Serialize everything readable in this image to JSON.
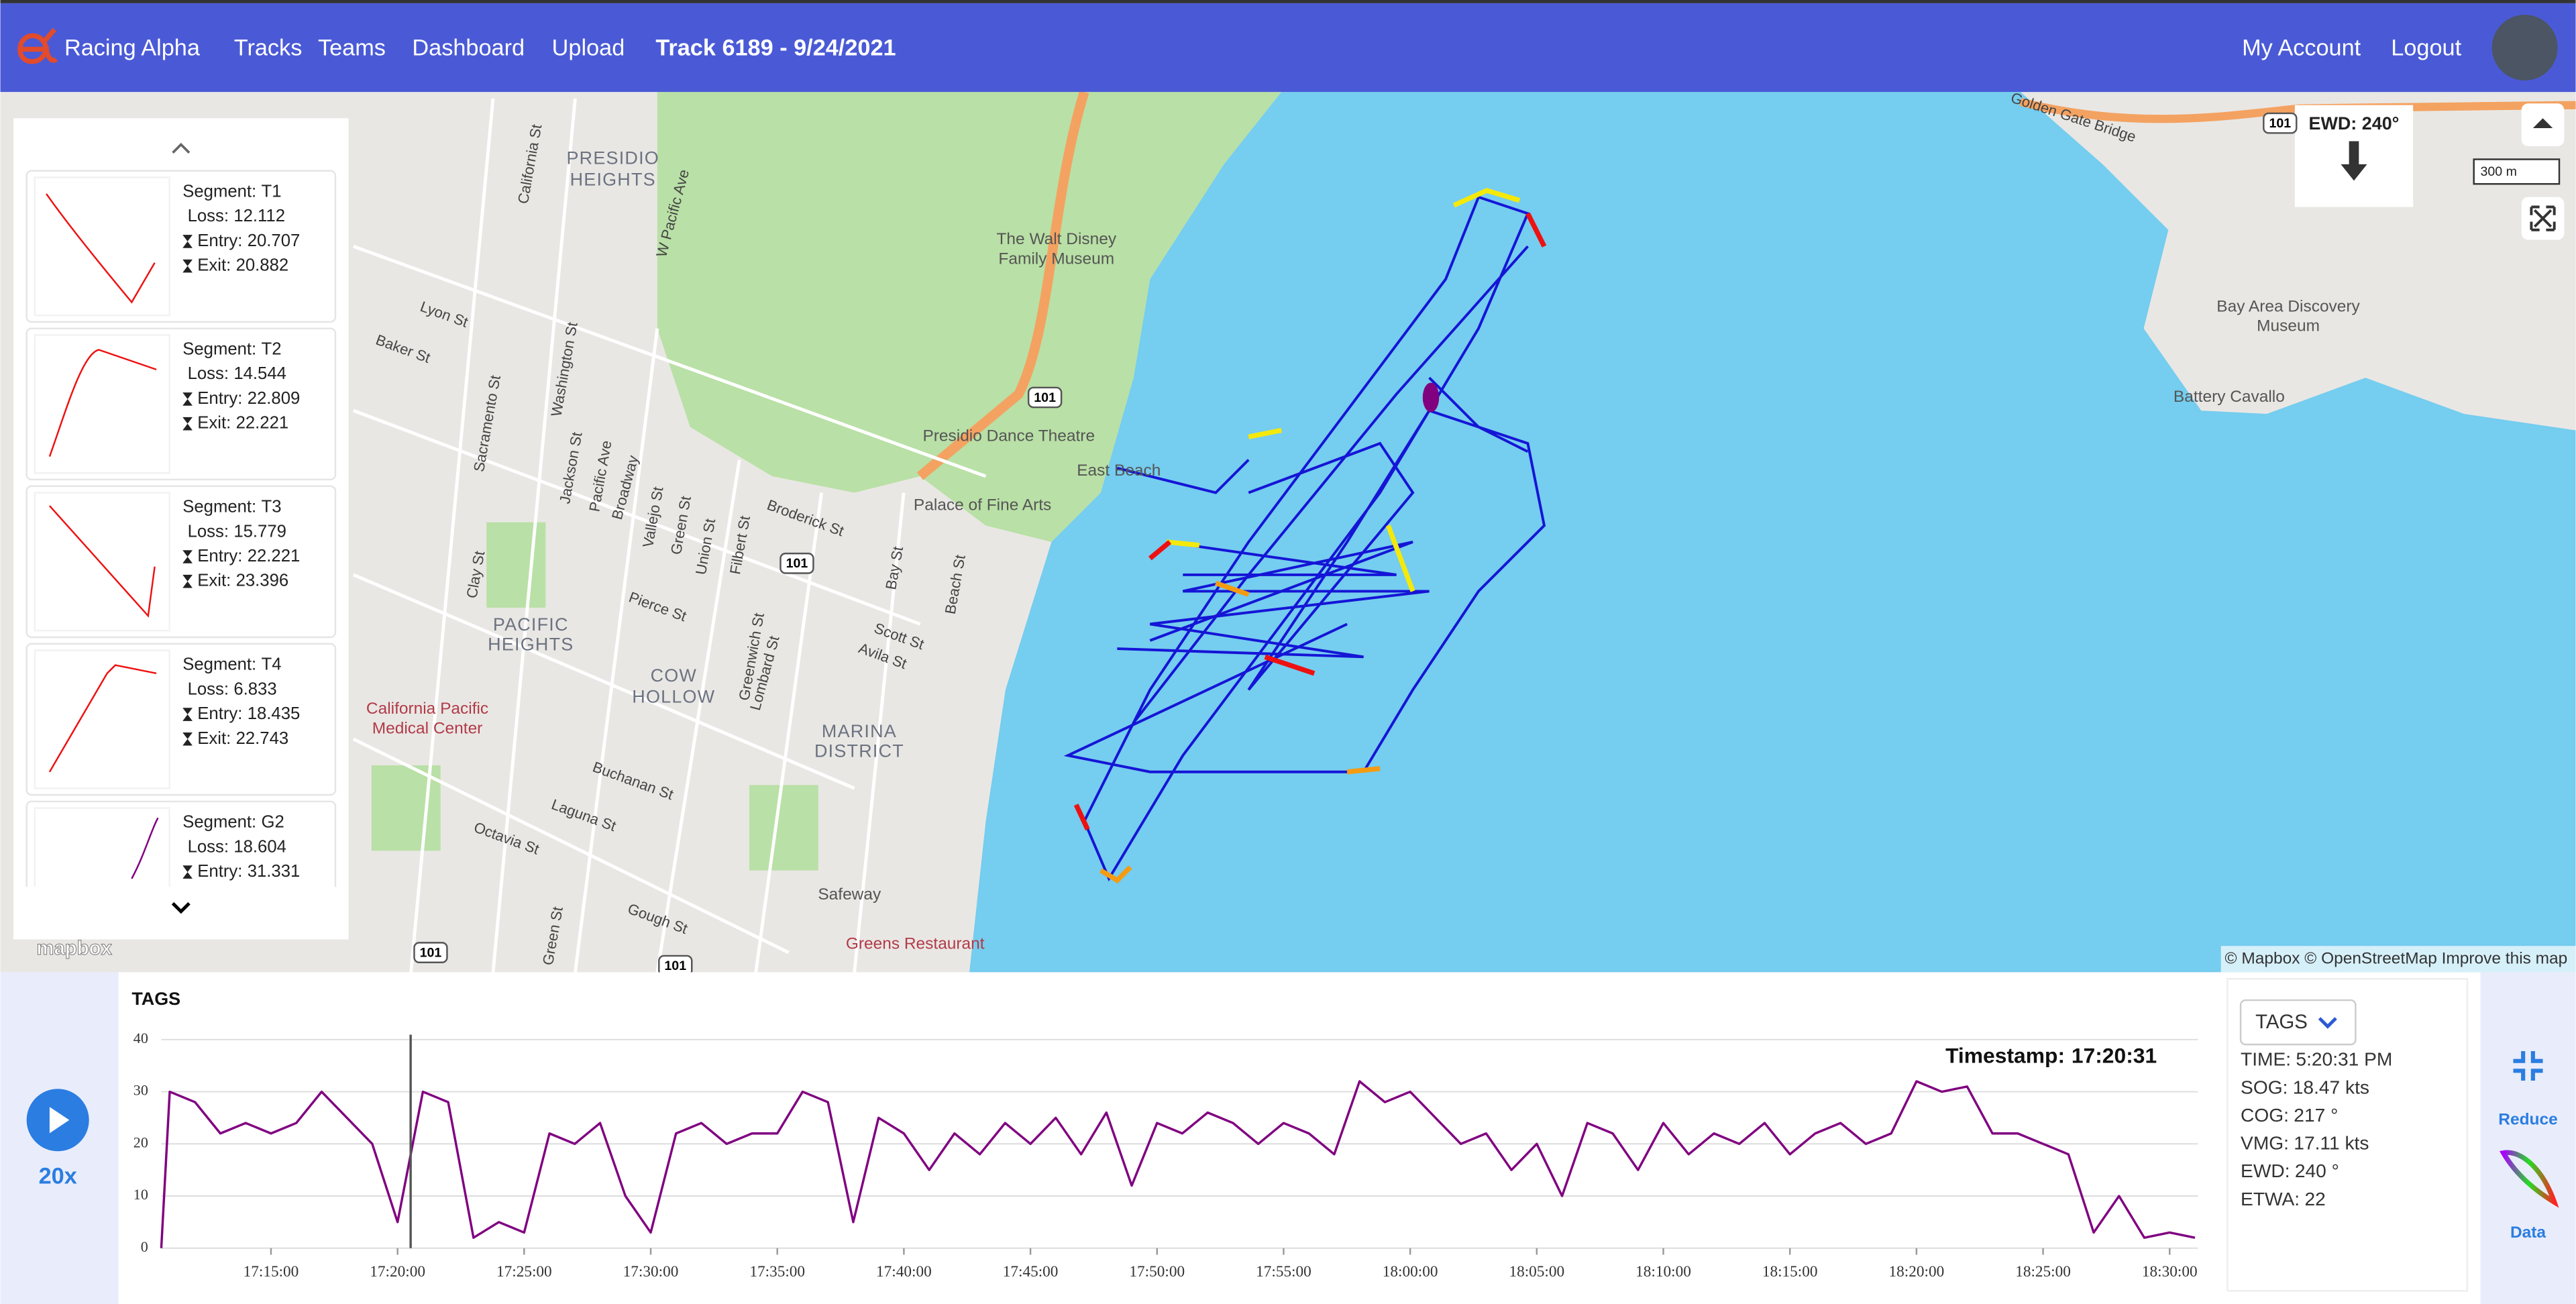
{
  "nav": {
    "brand": "Racing Alpha",
    "links": [
      "Tracks",
      "Teams",
      "Dashboard",
      "Upload"
    ],
    "track": "Track 6189 - 9/24/2021",
    "account": "My Account",
    "logout": "Logout"
  },
  "map": {
    "labels": [
      "PRESIDIO",
      "HEIGHTS",
      "California St",
      "W Pacific Ave",
      "Lyon St",
      "Baker St",
      "Sacramento St",
      "Washington St",
      "Jackson St",
      "Pacific Ave",
      "Broadway",
      "Vallejo St",
      "Green St",
      "Union St",
      "Filbert St",
      "Broderick St",
      "The Walt Disney",
      "Family Museum",
      "Presidio Dance Theatre",
      "Palace of Fine Arts",
      "East Beach",
      "PACIFIC",
      "HEIGHTS",
      "Pierce St",
      "COW",
      "HOLLOW",
      "Greenwich St",
      "Lombard St",
      "Scott St",
      "Avila St",
      "Bay St",
      "Beach St",
      "MARINA",
      "DISTRICT",
      "California Pacific",
      "Medical Center",
      "Clay St",
      "Buchanan St",
      "Laguna St",
      "Octavia St",
      "Gough St",
      "Green St",
      "Safeway",
      "Greens Restaurant",
      "Golden Gate Bridge",
      "Bay Area Discovery",
      "Museum",
      "Battery Cavallo"
    ],
    "shields": [
      "101",
      "101",
      "101",
      "101",
      "101"
    ],
    "wind": "EWD: 240°",
    "scale": "300 m",
    "attribution": "© Mapbox © OpenStreetMap Improve this map",
    "logo": "mapbox"
  },
  "segments": {
    "labels": {
      "segment": "Segment:",
      "loss": "Loss:",
      "entry": "Entry:",
      "exit": "Exit:"
    },
    "items": [
      {
        "name": "T1",
        "loss": 12.112,
        "entry": 20.707,
        "exit": 20.882
      },
      {
        "name": "T2",
        "loss": 14.544,
        "entry": 22.809,
        "exit": 22.221
      },
      {
        "name": "T3",
        "loss": 15.779,
        "entry": 22.221,
        "exit": 23.396
      },
      {
        "name": "T4",
        "loss": 6.833,
        "entry": 18.435,
        "exit": 22.743
      },
      {
        "name": "G2",
        "loss": 18.604,
        "entry": 31.331
      }
    ]
  },
  "player": {
    "speed": "20x"
  },
  "chart_data": {
    "type": "line",
    "title": "TAGS",
    "color": "#800080",
    "grid": true,
    "timestamp_label": "Timestamp:",
    "cursor": "17:20:31",
    "x": [
      "17:10:40",
      "17:11:00",
      "17:12:00",
      "17:13:00",
      "17:14:00",
      "17:15:00",
      "17:16:00",
      "17:17:00",
      "17:18:00",
      "17:19:00",
      "17:20:00",
      "17:21:00",
      "17:22:00",
      "17:23:00",
      "17:24:00",
      "17:25:00",
      "17:26:00",
      "17:27:00",
      "17:28:00",
      "17:29:00",
      "17:30:00",
      "17:31:00",
      "17:32:00",
      "17:33:00",
      "17:34:00",
      "17:35:00",
      "17:36:00",
      "17:37:00",
      "17:38:00",
      "17:39:00",
      "17:40:00",
      "17:41:00",
      "17:42:00",
      "17:43:00",
      "17:44:00",
      "17:45:00",
      "17:46:00",
      "17:47:00",
      "17:48:00",
      "17:49:00",
      "17:50:00",
      "17:51:00",
      "17:52:00",
      "17:53:00",
      "17:54:00",
      "17:55:00",
      "17:56:00",
      "17:57:00",
      "17:58:00",
      "17:59:00",
      "18:00:00",
      "18:01:00",
      "18:02:00",
      "18:03:00",
      "18:04:00",
      "18:05:00",
      "18:06:00",
      "18:07:00",
      "18:08:00",
      "18:09:00",
      "18:10:00",
      "18:11:00",
      "18:12:00",
      "18:13:00",
      "18:14:00",
      "18:15:00",
      "18:16:00",
      "18:17:00",
      "18:18:00",
      "18:19:00",
      "18:20:00",
      "18:21:00",
      "18:22:00",
      "18:23:00",
      "18:24:00",
      "18:25:00",
      "18:26:00",
      "18:27:00",
      "18:28:00",
      "18:29:00",
      "18:30:00",
      "18:31:00"
    ],
    "values": [
      0,
      30,
      28,
      22,
      24,
      22,
      24,
      30,
      25,
      20,
      5,
      30,
      28,
      2,
      5,
      3,
      22,
      20,
      24,
      10,
      3,
      22,
      24,
      20,
      22,
      22,
      30,
      28,
      5,
      25,
      22,
      15,
      22,
      18,
      24,
      20,
      25,
      18,
      26,
      12,
      24,
      22,
      26,
      24,
      20,
      24,
      22,
      18,
      32,
      28,
      30,
      25,
      20,
      22,
      15,
      20,
      10,
      24,
      22,
      15,
      24,
      18,
      22,
      20,
      24,
      18,
      22,
      24,
      20,
      22,
      32,
      30,
      31,
      22,
      22,
      20,
      18,
      3,
      10,
      2,
      3,
      2
    ],
    "xlim": [
      "17:10:40",
      "18:31:07"
    ],
    "xticks": [
      "17:15:00",
      "17:20:00",
      "17:25:00",
      "17:30:00",
      "17:35:00",
      "17:40:00",
      "17:45:00",
      "17:50:00",
      "17:55:00",
      "18:00:00",
      "18:05:00",
      "18:10:00",
      "18:15:00",
      "18:20:00",
      "18:25:00",
      "18:30:00"
    ],
    "ylim": [
      0,
      40
    ],
    "yticks": [
      0,
      10,
      20,
      30,
      40
    ]
  },
  "info": {
    "dropdown": "TAGS",
    "rows": [
      {
        "label": "TIME:",
        "value": "5:20:31 PM"
      },
      {
        "label": "SOG:",
        "value": "18.47 kts"
      },
      {
        "label": "COG:",
        "value": "217 °"
      },
      {
        "label": "VMG:",
        "value": "17.11 kts"
      },
      {
        "label": "EWD:",
        "value": "240 °"
      },
      {
        "label": "ETWA:",
        "value": "22"
      }
    ]
  },
  "side_buttons": [
    "Reduce",
    "Data"
  ]
}
